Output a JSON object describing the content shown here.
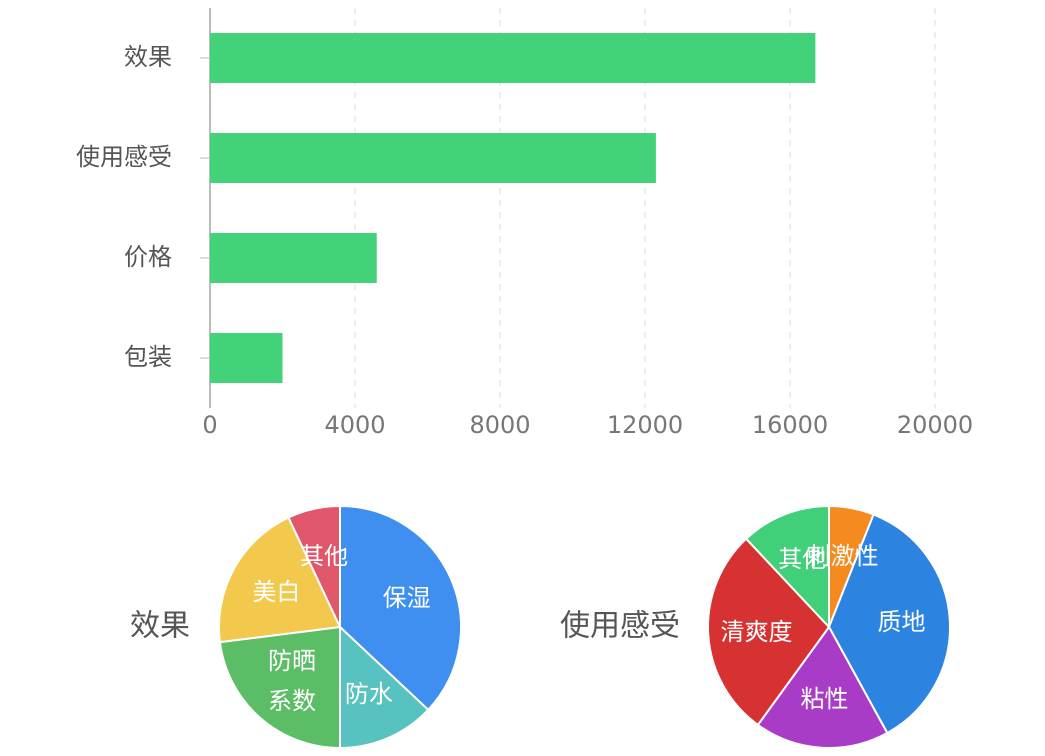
{
  "chart_data": [
    {
      "type": "bar",
      "orientation": "horizontal",
      "categories": [
        "效果",
        "使用感受",
        "价格",
        "包装"
      ],
      "values": [
        16700,
        12300,
        4600,
        2000
      ],
      "color": "#43d17a",
      "xlim": [
        0,
        20000
      ],
      "xticks": [
        0,
        4000,
        8000,
        12000,
        16000,
        20000
      ],
      "grid": true
    },
    {
      "type": "pie",
      "title": "效果",
      "categories": [
        "保湿",
        "防水",
        "防晒\n系数",
        "美白",
        "其他"
      ],
      "values": [
        37,
        13,
        23,
        20,
        7
      ],
      "colors": [
        "#3f8ff0",
        "#57c2bf",
        "#5cbd67",
        "#f2c94c",
        "#e0566a"
      ]
    },
    {
      "type": "pie",
      "title": "使用感受",
      "categories": [
        "刺激性",
        "质地",
        "粘性",
        "清爽度",
        "其他"
      ],
      "values": [
        6,
        36,
        18,
        28,
        12
      ],
      "colors": [
        "#f58a1f",
        "#2d84e0",
        "#a93cc6",
        "#d63232",
        "#41cf7a"
      ]
    }
  ]
}
